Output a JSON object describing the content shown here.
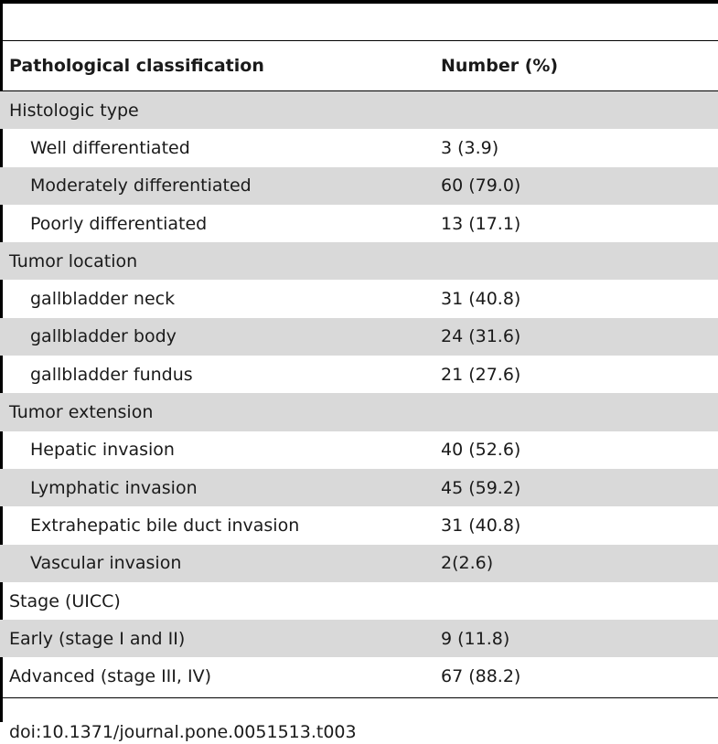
{
  "table": {
    "headers": {
      "label": "Pathological classification",
      "value": "Number (%)"
    },
    "rows": [
      {
        "label": "Histologic type",
        "value": "",
        "indent": false,
        "shaded": true
      },
      {
        "label": "Well differentiated",
        "value": "3 (3.9)",
        "indent": true,
        "shaded": false
      },
      {
        "label": "Moderately differentiated",
        "value": "60 (79.0)",
        "indent": true,
        "shaded": true
      },
      {
        "label": "Poorly differentiated",
        "value": "13 (17.1)",
        "indent": true,
        "shaded": false
      },
      {
        "label": "Tumor location",
        "value": "",
        "indent": false,
        "shaded": true
      },
      {
        "label": "gallbladder neck",
        "value": "31 (40.8)",
        "indent": true,
        "shaded": false
      },
      {
        "label": "gallbladder body",
        "value": "24 (31.6)",
        "indent": true,
        "shaded": true
      },
      {
        "label": "gallbladder fundus",
        "value": "21 (27.6)",
        "indent": true,
        "shaded": false
      },
      {
        "label": "Tumor extension",
        "value": "",
        "indent": false,
        "shaded": true
      },
      {
        "label": "Hepatic invasion",
        "value": "40 (52.6)",
        "indent": true,
        "shaded": false
      },
      {
        "label": "Lymphatic invasion",
        "value": "45 (59.2)",
        "indent": true,
        "shaded": true
      },
      {
        "label": "Extrahepatic bile duct invasion",
        "value": "31 (40.8)",
        "indent": true,
        "shaded": false
      },
      {
        "label": "Vascular invasion",
        "value": "2(2.6)",
        "indent": true,
        "shaded": true
      },
      {
        "label": "Stage (UICC)",
        "value": "",
        "indent": false,
        "shaded": false
      },
      {
        "label": "Early (stage I and II)",
        "value": "9 (11.8)",
        "indent": false,
        "shaded": true
      },
      {
        "label": "Advanced (stage III, IV)",
        "value": "67 (88.2)",
        "indent": false,
        "shaded": false
      }
    ]
  },
  "footer": {
    "doi": "doi:10.1371/journal.pone.0051513.t003"
  }
}
